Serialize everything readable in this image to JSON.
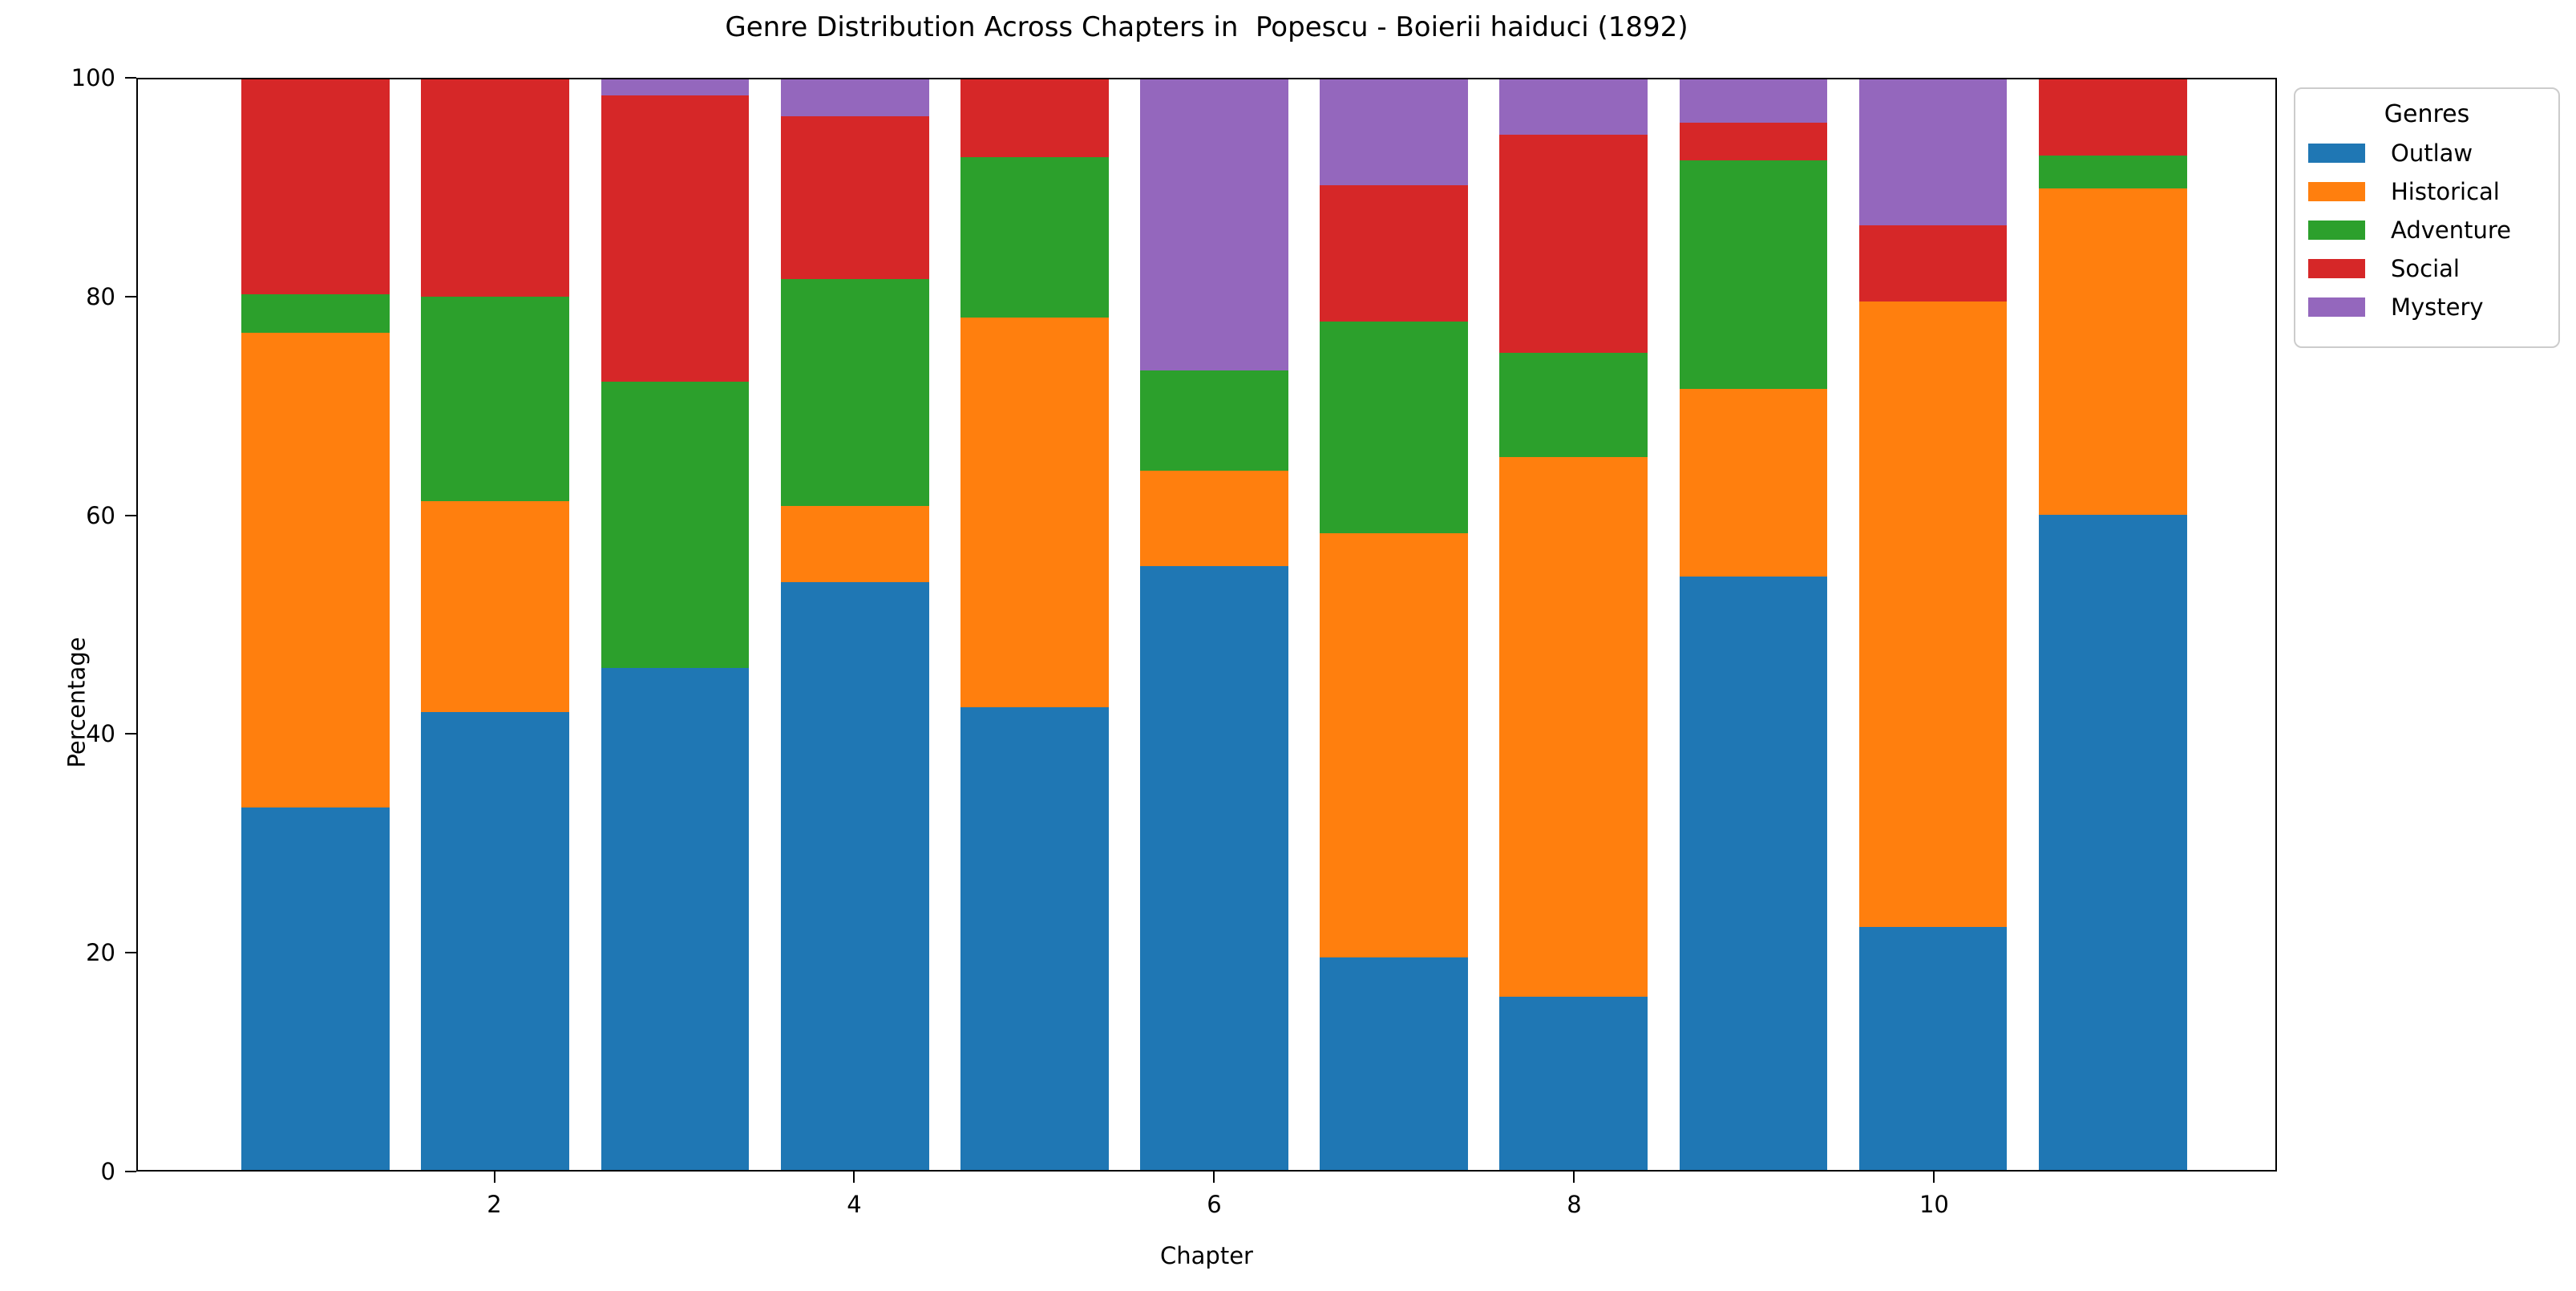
{
  "figure": {
    "title": "Genre Distribution Across Chapters in  Popescu - Boierii haiduci (1892)",
    "xlabel": "Chapter",
    "ylabel": "Percentage",
    "legend_title": "Genres",
    "spine_color": "#000000",
    "legend_border_color": "#cccccc",
    "background_color": "#ffffff"
  },
  "chart_data": {
    "type": "bar",
    "stacked": true,
    "title": "Genre Distribution Across Chapters in  Popescu - Boierii haiduci (1892)",
    "xlabel": "Chapter",
    "ylabel": "Percentage",
    "ylim": [
      0,
      100
    ],
    "y_ticks": [
      0,
      20,
      40,
      60,
      80,
      100
    ],
    "x_ticks": [
      2,
      4,
      6,
      8,
      10
    ],
    "grid": false,
    "legend_position": "upper right, outside axes",
    "categories": [
      1,
      2,
      3,
      4,
      5,
      6,
      7,
      8,
      9,
      10,
      11
    ],
    "series": [
      {
        "name": "Outlaw",
        "color": "#1f77b4",
        "values": [
          33.2,
          42.0,
          46.0,
          53.9,
          42.4,
          55.4,
          19.5,
          15.9,
          54.4,
          22.3,
          60.1
        ]
      },
      {
        "name": "Historical",
        "color": "#ff7f0e",
        "values": [
          43.6,
          19.3,
          0.0,
          7.0,
          35.8,
          8.7,
          38.9,
          49.5,
          17.2,
          57.3,
          29.9
        ]
      },
      {
        "name": "Adventure",
        "color": "#2ca02c",
        "values": [
          3.5,
          18.8,
          26.3,
          20.8,
          14.7,
          9.2,
          19.4,
          9.5,
          21.0,
          0.0,
          3.0
        ]
      },
      {
        "name": "Social",
        "color": "#d62728",
        "values": [
          19.7,
          19.9,
          26.2,
          14.9,
          7.1,
          0.0,
          12.5,
          20.0,
          3.4,
          7.0,
          7.0
        ]
      },
      {
        "name": "Mystery",
        "color": "#9467bd",
        "values": [
          0.0,
          0.0,
          1.5,
          3.4,
          0.0,
          26.7,
          9.7,
          5.1,
          4.0,
          13.4,
          0.0
        ]
      }
    ]
  }
}
